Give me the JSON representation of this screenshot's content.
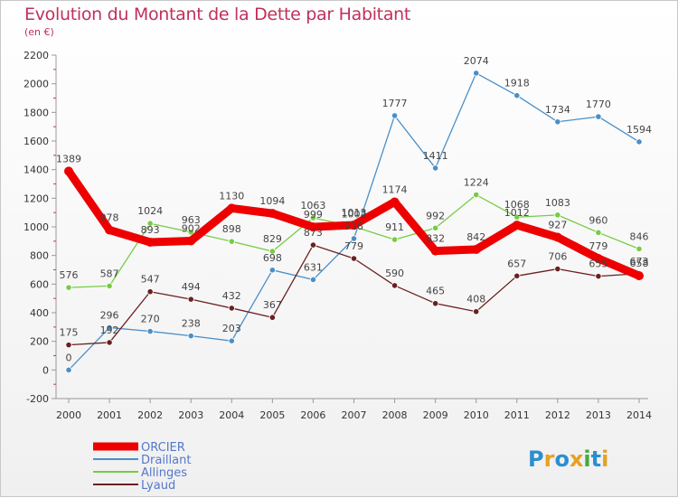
{
  "header": {
    "title": "Evolution du Montant de la Dette par Habitant",
    "unit": "(en €)"
  },
  "logo": {
    "text": "Proxiti"
  },
  "chart_data": {
    "type": "line",
    "title": "Evolution du Montant de la Dette par Habitant",
    "subtitle": "(en €)",
    "xlabel": "",
    "ylabel": "",
    "x": [
      2000,
      2001,
      2002,
      2003,
      2004,
      2005,
      2006,
      2007,
      2008,
      2009,
      2010,
      2011,
      2012,
      2013,
      2014
    ],
    "ylim": [
      -200,
      2200
    ],
    "yticks": [
      -200,
      0,
      200,
      400,
      600,
      800,
      1000,
      1200,
      1400,
      1600,
      1800,
      2000,
      2200
    ],
    "grid": false,
    "legend_position": "bottom-left",
    "series": [
      {
        "name": "ORCIER",
        "color": "#ee0000",
        "values": [
          1389,
          978,
          893,
          902,
          1130,
          1094,
          999,
          1013,
          1174,
          832,
          842,
          1012,
          927,
          779,
          658
        ]
      },
      {
        "name": "Draillant",
        "color": "#4a8fc8",
        "values": [
          0,
          296,
          270,
          238,
          203,
          698,
          631,
          918,
          1777,
          1411,
          2074,
          1918,
          1734,
          1770,
          1594
        ]
      },
      {
        "name": "Allinges",
        "color": "#77cc44",
        "values": [
          576,
          587,
          1024,
          963,
          898,
          829,
          1063,
          1002,
          911,
          992,
          1224,
          1068,
          1083,
          960,
          846
        ]
      },
      {
        "name": "Lyaud",
        "color": "#6b2020",
        "values": [
          175,
          192,
          547,
          494,
          432,
          367,
          873,
          779,
          590,
          465,
          408,
          657,
          706,
          655,
          673
        ]
      }
    ]
  }
}
